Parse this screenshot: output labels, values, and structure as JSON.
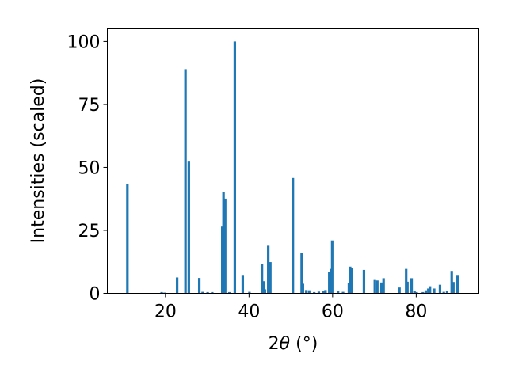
{
  "chart_data": {
    "type": "bar",
    "title": "",
    "xlabel": "2θ (°)",
    "ylabel": "Intensities (scaled)",
    "xlim": [
      6.1,
      95.0
    ],
    "ylim": [
      0,
      105
    ],
    "xticks": [
      20,
      40,
      60,
      80
    ],
    "yticks": [
      0,
      25,
      50,
      75,
      100
    ],
    "xtick_labels": [
      "20",
      "40",
      "60",
      "80"
    ],
    "ytick_labels": [
      "0",
      "25",
      "50",
      "75",
      "100"
    ],
    "grid": false,
    "bar_color": "#1f77b4",
    "bar_width": 0.6,
    "x": [
      10.9,
      19.1,
      19.8,
      22.8,
      24.8,
      25.6,
      28.1,
      28.9,
      30.1,
      31.2,
      33.6,
      33.9,
      34.3,
      35.3,
      36.6,
      38.5,
      40.1,
      43.1,
      43.5,
      43.8,
      44.6,
      45.1,
      50.5,
      52.6,
      52.9,
      53.7,
      54.4,
      55.6,
      56.7,
      57.8,
      58.3,
      59.2,
      59.6,
      59.9,
      61.3,
      62.5,
      63.9,
      64.2,
      64.6,
      67.5,
      70.1,
      70.7,
      71.7,
      72.2,
      76.0,
      77.6,
      77.9,
      78.9,
      79.6,
      80.1,
      81.6,
      82.3,
      82.9,
      83.3,
      84.3,
      85.7,
      86.6,
      87.4,
      88.5,
      88.9,
      89.9
    ],
    "values": [
      43.5,
      0.5,
      0.3,
      6.3,
      89.0,
      52.3,
      6.1,
      0.6,
      0.5,
      0.5,
      26.5,
      40.3,
      37.6,
      0.5,
      100.0,
      7.3,
      0.6,
      11.7,
      4.8,
      1.6,
      18.9,
      12.4,
      45.8,
      16.0,
      3.8,
      1.3,
      1.2,
      0.5,
      0.7,
      0.8,
      1.3,
      8.4,
      9.7,
      21.0,
      1.1,
      0.6,
      4.0,
      10.6,
      10.2,
      9.3,
      5.3,
      5.1,
      4.3,
      6.0,
      2.3,
      9.7,
      4.6,
      6.0,
      0.8,
      0.5,
      0.5,
      1.2,
      1.9,
      2.8,
      1.9,
      3.4,
      0.6,
      1.1,
      8.9,
      4.5,
      7.3
    ]
  }
}
